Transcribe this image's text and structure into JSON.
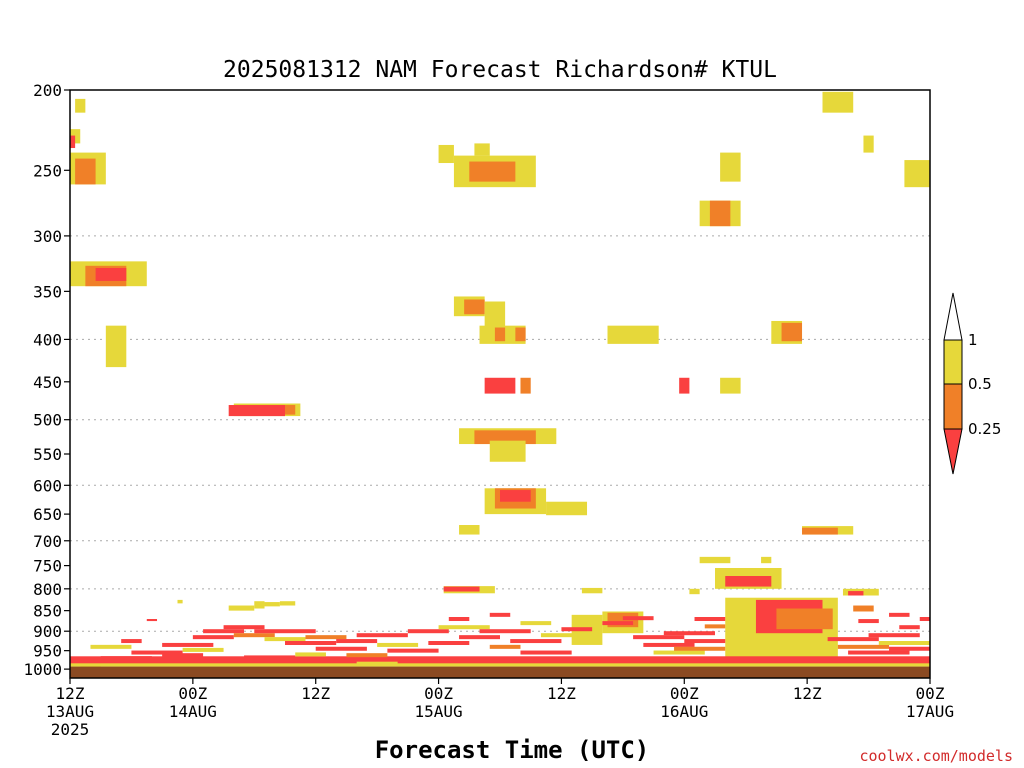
{
  "chart_data": {
    "type": "heatmap",
    "title": "2025081312 NAM Forecast Richardson# KTUL",
    "xlabel": "Forecast Time (UTC)",
    "ylabel": "",
    "y_scale": "log",
    "y_reversed": true,
    "ylim": [
      1025,
      200
    ],
    "xlim_hours": [
      0,
      84
    ],
    "y_ticks": [
      200,
      250,
      300,
      350,
      400,
      450,
      500,
      550,
      600,
      650,
      700,
      750,
      800,
      850,
      900,
      950,
      1000
    ],
    "y_gridlines": [
      300,
      400,
      500,
      600,
      700,
      800,
      900,
      1000
    ],
    "x_ticks": [
      {
        "hour": 0,
        "line1": "12Z",
        "line2": "13AUG",
        "line3": "2025"
      },
      {
        "hour": 12,
        "line1": "00Z",
        "line2": "14AUG",
        "line3": ""
      },
      {
        "hour": 24,
        "line1": "12Z",
        "line2": "",
        "line3": ""
      },
      {
        "hour": 36,
        "line1": "00Z",
        "line2": "15AUG",
        "line3": ""
      },
      {
        "hour": 48,
        "line1": "12Z",
        "line2": "",
        "line3": ""
      },
      {
        "hour": 60,
        "line1": "00Z",
        "line2": "16AUG",
        "line3": ""
      },
      {
        "hour": 72,
        "line1": "12Z",
        "line2": "",
        "line3": ""
      },
      {
        "hour": 84,
        "line1": "00Z",
        "line2": "17AUG",
        "line3": ""
      }
    ],
    "legend": {
      "placement": "right",
      "labels": [
        "1",
        "0.5",
        "0.25"
      ],
      "bins": [
        {
          "range": ">1",
          "color": "#ffffff"
        },
        {
          "range": "0.5-1",
          "color": "#e6d83a"
        },
        {
          "range": "0.25-0.5",
          "color": "#f08028"
        },
        {
          "range": "<0.25",
          "color": "#fa4040"
        }
      ]
    },
    "surface_color": "#8b4a22",
    "surface_pressure": 993,
    "cells": [
      {
        "t0": 0.5,
        "t1": 1.5,
        "p0": 205,
        "p1": 213,
        "bin": "y"
      },
      {
        "t0": 0.0,
        "t1": 1.0,
        "p0": 223,
        "p1": 232,
        "bin": "y"
      },
      {
        "t0": 0.0,
        "t1": 0.5,
        "p0": 227,
        "p1": 235,
        "bin": "r"
      },
      {
        "t0": 0.0,
        "t1": 3.5,
        "p0": 238,
        "p1": 260,
        "bin": "y"
      },
      {
        "t0": 0.5,
        "t1": 2.5,
        "p0": 242,
        "p1": 260,
        "bin": "o"
      },
      {
        "t0": 0.0,
        "t1": 7.5,
        "p0": 322,
        "p1": 345,
        "bin": "y"
      },
      {
        "t0": 1.5,
        "t1": 5.5,
        "p0": 326,
        "p1": 345,
        "bin": "o"
      },
      {
        "t0": 2.5,
        "t1": 5.5,
        "p0": 328,
        "p1": 340,
        "bin": "r"
      },
      {
        "t0": 3.5,
        "t1": 5.5,
        "p0": 385,
        "p1": 432,
        "bin": "y"
      },
      {
        "t0": 16.0,
        "t1": 22.5,
        "p0": 478,
        "p1": 495,
        "bin": "y"
      },
      {
        "t0": 15.5,
        "t1": 21.0,
        "p0": 480,
        "p1": 495,
        "bin": "r"
      },
      {
        "t0": 21.0,
        "t1": 22.0,
        "p0": 480,
        "p1": 493,
        "bin": "o"
      },
      {
        "t0": 36.0,
        "t1": 37.5,
        "p0": 233,
        "p1": 245,
        "bin": "y"
      },
      {
        "t0": 39.5,
        "t1": 41.0,
        "p0": 232,
        "p1": 240,
        "bin": "y"
      },
      {
        "t0": 37.5,
        "t1": 45.5,
        "p0": 240,
        "p1": 262,
        "bin": "y"
      },
      {
        "t0": 39.0,
        "t1": 43.5,
        "p0": 244,
        "p1": 258,
        "bin": "o"
      },
      {
        "t0": 37.5,
        "t1": 40.5,
        "p0": 355,
        "p1": 375,
        "bin": "y"
      },
      {
        "t0": 38.5,
        "t1": 40.5,
        "p0": 358,
        "p1": 373,
        "bin": "o"
      },
      {
        "t0": 40.5,
        "t1": 42.5,
        "p0": 360,
        "p1": 390,
        "bin": "y"
      },
      {
        "t0": 40.0,
        "t1": 44.5,
        "p0": 385,
        "p1": 405,
        "bin": "y"
      },
      {
        "t0": 41.5,
        "t1": 42.5,
        "p0": 387,
        "p1": 402,
        "bin": "o"
      },
      {
        "t0": 43.5,
        "t1": 44.5,
        "p0": 387,
        "p1": 402,
        "bin": "o"
      },
      {
        "t0": 40.5,
        "t1": 43.5,
        "p0": 445,
        "p1": 465,
        "bin": "r"
      },
      {
        "t0": 44.0,
        "t1": 45.0,
        "p0": 445,
        "p1": 465,
        "bin": "o"
      },
      {
        "t0": 38.0,
        "t1": 47.5,
        "p0": 512,
        "p1": 535,
        "bin": "y"
      },
      {
        "t0": 39.5,
        "t1": 45.5,
        "p0": 515,
        "p1": 535,
        "bin": "o"
      },
      {
        "t0": 41.0,
        "t1": 44.5,
        "p0": 530,
        "p1": 562,
        "bin": "y"
      },
      {
        "t0": 40.5,
        "t1": 46.5,
        "p0": 605,
        "p1": 650,
        "bin": "y"
      },
      {
        "t0": 41.5,
        "t1": 45.5,
        "p0": 605,
        "p1": 640,
        "bin": "o"
      },
      {
        "t0": 42.0,
        "t1": 45.0,
        "p0": 608,
        "p1": 628,
        "bin": "r"
      },
      {
        "t0": 46.5,
        "t1": 50.5,
        "p0": 628,
        "p1": 652,
        "bin": "y"
      },
      {
        "t0": 38.0,
        "t1": 40.0,
        "p0": 670,
        "p1": 688,
        "bin": "y"
      },
      {
        "t0": 52.5,
        "t1": 57.5,
        "p0": 385,
        "p1": 405,
        "bin": "y"
      },
      {
        "t0": 59.5,
        "t1": 60.5,
        "p0": 445,
        "p1": 465,
        "bin": "r"
      },
      {
        "t0": 63.5,
        "t1": 65.5,
        "p0": 445,
        "p1": 465,
        "bin": "y"
      },
      {
        "t0": 63.5,
        "t1": 65.5,
        "p0": 238,
        "p1": 258,
        "bin": "y"
      },
      {
        "t0": 61.5,
        "t1": 65.5,
        "p0": 272,
        "p1": 292,
        "bin": "y"
      },
      {
        "t0": 62.5,
        "t1": 64.5,
        "p0": 272,
        "p1": 292,
        "bin": "o"
      },
      {
        "t0": 68.5,
        "t1": 71.5,
        "p0": 380,
        "p1": 405,
        "bin": "y"
      },
      {
        "t0": 69.5,
        "t1": 71.5,
        "p0": 382,
        "p1": 402,
        "bin": "o"
      },
      {
        "t0": 73.5,
        "t1": 76.5,
        "p0": 201,
        "p1": 213,
        "bin": "y"
      },
      {
        "t0": 77.5,
        "t1": 78.5,
        "p0": 227,
        "p1": 238,
        "bin": "y"
      },
      {
        "t0": 81.5,
        "t1": 84.0,
        "p0": 243,
        "p1": 262,
        "bin": "y"
      },
      {
        "t0": 71.5,
        "t1": 76.5,
        "p0": 672,
        "p1": 688,
        "bin": "y"
      },
      {
        "t0": 71.5,
        "t1": 75.0,
        "p0": 675,
        "p1": 688,
        "bin": "o"
      },
      {
        "t0": 61.5,
        "t1": 64.5,
        "p0": 732,
        "p1": 745,
        "bin": "y"
      },
      {
        "t0": 67.5,
        "t1": 68.5,
        "p0": 732,
        "p1": 745,
        "bin": "y"
      },
      {
        "t0": 36.5,
        "t1": 41.5,
        "p0": 794,
        "p1": 810,
        "bin": "y"
      },
      {
        "t0": 36.5,
        "t1": 40.0,
        "p0": 795,
        "p1": 806,
        "bin": "r"
      },
      {
        "t0": 50.0,
        "t1": 52.0,
        "p0": 798,
        "p1": 810,
        "bin": "y"
      },
      {
        "t0": 60.5,
        "t1": 61.5,
        "p0": 800,
        "p1": 812,
        "bin": "y"
      },
      {
        "t0": 63.0,
        "t1": 69.5,
        "p0": 755,
        "p1": 800,
        "bin": "y"
      },
      {
        "t0": 64.0,
        "t1": 68.5,
        "p0": 772,
        "p1": 795,
        "bin": "r"
      },
      {
        "t0": 75.5,
        "t1": 79.0,
        "p0": 800,
        "p1": 815,
        "bin": "y"
      },
      {
        "t0": 76.0,
        "t1": 77.5,
        "p0": 805,
        "p1": 815,
        "bin": "r"
      },
      {
        "t0": 76.5,
        "t1": 78.5,
        "p0": 838,
        "p1": 852,
        "bin": "o"
      },
      {
        "t0": 15.5,
        "t1": 18.0,
        "p0": 838,
        "p1": 850,
        "bin": "y"
      },
      {
        "t0": 18.0,
        "t1": 19.0,
        "p0": 828,
        "p1": 845,
        "bin": "y"
      },
      {
        "t0": 19.0,
        "t1": 20.5,
        "p0": 830,
        "p1": 840,
        "bin": "y"
      },
      {
        "t0": 20.5,
        "t1": 22.0,
        "p0": 828,
        "p1": 838,
        "bin": "y"
      },
      {
        "t0": 10.5,
        "t1": 11.0,
        "p0": 825,
        "p1": 833,
        "bin": "y"
      },
      {
        "t0": 7.5,
        "t1": 8.5,
        "p0": 870,
        "p1": 875,
        "bin": "r"
      },
      {
        "t0": 64.0,
        "t1": 75.0,
        "p0": 820,
        "p1": 990,
        "bin": "y"
      },
      {
        "t0": 67.0,
        "t1": 73.5,
        "p0": 825,
        "p1": 905,
        "bin": "r"
      },
      {
        "t0": 69.0,
        "t1": 74.5,
        "p0": 845,
        "p1": 895,
        "bin": "o"
      },
      {
        "t0": 52.0,
        "t1": 56.0,
        "p0": 852,
        "p1": 905,
        "bin": "y"
      },
      {
        "t0": 52.5,
        "t1": 55.5,
        "p0": 855,
        "p1": 890,
        "bin": "o"
      },
      {
        "t0": 49.0,
        "t1": 52.0,
        "p0": 860,
        "p1": 935,
        "bin": "y"
      },
      {
        "t0": 0.0,
        "t1": 84.0,
        "p0": 965,
        "p1": 990,
        "bin": "r"
      },
      {
        "t0": 0.0,
        "t1": 84.0,
        "p0": 984,
        "p1": 993,
        "bin": "y"
      }
    ],
    "streaks": [
      {
        "t0": 2,
        "t1": 6,
        "p": 940,
        "bin": "y"
      },
      {
        "t0": 5,
        "t1": 7,
        "p": 925,
        "bin": "r"
      },
      {
        "t0": 6,
        "t1": 11,
        "p": 955,
        "bin": "r"
      },
      {
        "t0": 9,
        "t1": 14,
        "p": 935,
        "bin": "r"
      },
      {
        "t0": 12,
        "t1": 16,
        "p": 915,
        "bin": "r"
      },
      {
        "t0": 13,
        "t1": 17,
        "p": 900,
        "bin": "r"
      },
      {
        "t0": 15,
        "t1": 19,
        "p": 890,
        "bin": "r"
      },
      {
        "t0": 16,
        "t1": 20,
        "p": 910,
        "bin": "o"
      },
      {
        "t0": 18,
        "t1": 24,
        "p": 900,
        "bin": "r"
      },
      {
        "t0": 19,
        "t1": 23,
        "p": 920,
        "bin": "y"
      },
      {
        "t0": 21,
        "t1": 26,
        "p": 930,
        "bin": "r"
      },
      {
        "t0": 23,
        "t1": 27,
        "p": 915,
        "bin": "o"
      },
      {
        "t0": 24,
        "t1": 29,
        "p": 945,
        "bin": "r"
      },
      {
        "t0": 26,
        "t1": 30,
        "p": 925,
        "bin": "r"
      },
      {
        "t0": 28,
        "t1": 33,
        "p": 910,
        "bin": "r"
      },
      {
        "t0": 30,
        "t1": 34,
        "p": 935,
        "bin": "y"
      },
      {
        "t0": 31,
        "t1": 36,
        "p": 950,
        "bin": "r"
      },
      {
        "t0": 33,
        "t1": 37,
        "p": 900,
        "bin": "r"
      },
      {
        "t0": 35,
        "t1": 39,
        "p": 930,
        "bin": "r"
      },
      {
        "t0": 36,
        "t1": 41,
        "p": 890,
        "bin": "y"
      },
      {
        "t0": 38,
        "t1": 42,
        "p": 915,
        "bin": "r"
      },
      {
        "t0": 40,
        "t1": 45,
        "p": 900,
        "bin": "r"
      },
      {
        "t0": 41,
        "t1": 44,
        "p": 940,
        "bin": "o"
      },
      {
        "t0": 43,
        "t1": 48,
        "p": 925,
        "bin": "r"
      },
      {
        "t0": 44,
        "t1": 49,
        "p": 955,
        "bin": "r"
      },
      {
        "t0": 46,
        "t1": 50,
        "p": 910,
        "bin": "y"
      },
      {
        "t0": 55,
        "t1": 60,
        "p": 915,
        "bin": "r"
      },
      {
        "t0": 56,
        "t1": 61,
        "p": 935,
        "bin": "r"
      },
      {
        "t0": 57,
        "t1": 62,
        "p": 955,
        "bin": "y"
      },
      {
        "t0": 58,
        "t1": 63,
        "p": 905,
        "bin": "r"
      },
      {
        "t0": 59,
        "t1": 64,
        "p": 945,
        "bin": "o"
      },
      {
        "t0": 60,
        "t1": 64,
        "p": 925,
        "bin": "r"
      },
      {
        "t0": 74,
        "t1": 79,
        "p": 920,
        "bin": "r"
      },
      {
        "t0": 75,
        "t1": 80,
        "p": 940,
        "bin": "o"
      },
      {
        "t0": 76,
        "t1": 82,
        "p": 955,
        "bin": "r"
      },
      {
        "t0": 78,
        "t1": 83,
        "p": 910,
        "bin": "r"
      },
      {
        "t0": 79,
        "t1": 84,
        "p": 930,
        "bin": "y"
      },
      {
        "t0": 80,
        "t1": 84,
        "p": 945,
        "bin": "r"
      },
      {
        "t0": 81,
        "t1": 83,
        "p": 890,
        "bin": "r"
      },
      {
        "t0": 83,
        "t1": 84,
        "p": 870,
        "bin": "r"
      },
      {
        "t0": 80,
        "t1": 82,
        "p": 860,
        "bin": "r"
      },
      {
        "t0": 77,
        "t1": 79,
        "p": 875,
        "bin": "r"
      },
      {
        "t0": 3,
        "t1": 8,
        "p": 970,
        "bin": "r"
      },
      {
        "t0": 9,
        "t1": 13,
        "p": 962,
        "bin": "r"
      },
      {
        "t0": 17,
        "t1": 22,
        "p": 968,
        "bin": "r"
      },
      {
        "t0": 27,
        "t1": 31,
        "p": 962,
        "bin": "o"
      },
      {
        "t0": 11,
        "t1": 15,
        "p": 948,
        "bin": "y"
      },
      {
        "t0": 22,
        "t1": 25,
        "p": 960,
        "bin": "y"
      },
      {
        "t0": 37,
        "t1": 39,
        "p": 870,
        "bin": "r"
      },
      {
        "t0": 41,
        "t1": 43,
        "p": 860,
        "bin": "r"
      },
      {
        "t0": 44,
        "t1": 47,
        "p": 880,
        "bin": "y"
      },
      {
        "t0": 48,
        "t1": 51,
        "p": 895,
        "bin": "r"
      },
      {
        "t0": 52,
        "t1": 55,
        "p": 880,
        "bin": "r"
      },
      {
        "t0": 54,
        "t1": 57,
        "p": 868,
        "bin": "r"
      },
      {
        "t0": 61,
        "t1": 64,
        "p": 870,
        "bin": "r"
      },
      {
        "t0": 62,
        "t1": 64,
        "p": 888,
        "bin": "o"
      },
      {
        "t0": 1,
        "t1": 3,
        "p": 990,
        "bin": "y"
      },
      {
        "t0": 28,
        "t1": 32,
        "p": 985,
        "bin": "y"
      }
    ],
    "credit": "coolwx.com/models"
  }
}
